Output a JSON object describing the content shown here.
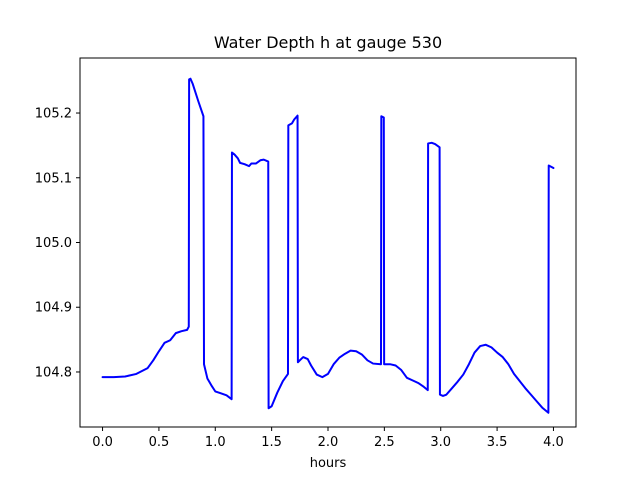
{
  "chart_data": {
    "type": "line",
    "title": "Water Depth h at gauge 530",
    "xlabel": "hours",
    "ylabel": "",
    "xlim": [
      -0.2,
      4.2
    ],
    "ylim": [
      104.715,
      105.285
    ],
    "x_ticks": [
      0.0,
      0.5,
      1.0,
      1.5,
      2.0,
      2.5,
      3.0,
      3.5,
      4.0
    ],
    "x_tick_labels": [
      "0.0",
      "0.5",
      "1.0",
      "1.5",
      "2.0",
      "2.5",
      "3.0",
      "3.5",
      "4.0"
    ],
    "y_ticks": [
      104.8,
      104.9,
      105.0,
      105.1,
      105.2
    ],
    "y_tick_labels": [
      "104.8",
      "104.9",
      "105.0",
      "105.1",
      "105.2"
    ],
    "grid": false,
    "legend": "none",
    "series": [
      {
        "color": "#0000ff",
        "points": [
          [
            0.0,
            104.792
          ],
          [
            0.1,
            104.792
          ],
          [
            0.2,
            104.793
          ],
          [
            0.3,
            104.797
          ],
          [
            0.4,
            104.806
          ],
          [
            0.45,
            104.818
          ],
          [
            0.5,
            104.832
          ],
          [
            0.55,
            104.845
          ],
          [
            0.6,
            104.849
          ],
          [
            0.65,
            104.86
          ],
          [
            0.7,
            104.863
          ],
          [
            0.75,
            104.865
          ],
          [
            0.765,
            104.87
          ],
          [
            0.768,
            105.252
          ],
          [
            0.78,
            105.253
          ],
          [
            0.8,
            105.245
          ],
          [
            0.85,
            105.218
          ],
          [
            0.895,
            105.195
          ],
          [
            0.9,
            104.812
          ],
          [
            0.93,
            104.79
          ],
          [
            0.97,
            104.778
          ],
          [
            1.0,
            104.77
          ],
          [
            1.05,
            104.767
          ],
          [
            1.1,
            104.764
          ],
          [
            1.145,
            104.758
          ],
          [
            1.148,
            105.139
          ],
          [
            1.17,
            105.136
          ],
          [
            1.2,
            105.13
          ],
          [
            1.22,
            105.123
          ],
          [
            1.26,
            105.121
          ],
          [
            1.3,
            105.118
          ],
          [
            1.32,
            105.122
          ],
          [
            1.36,
            105.122
          ],
          [
            1.4,
            105.127
          ],
          [
            1.43,
            105.128
          ],
          [
            1.47,
            105.125
          ],
          [
            1.473,
            104.744
          ],
          [
            1.5,
            104.747
          ],
          [
            1.55,
            104.768
          ],
          [
            1.6,
            104.786
          ],
          [
            1.645,
            104.797
          ],
          [
            1.648,
            105.181
          ],
          [
            1.68,
            105.184
          ],
          [
            1.7,
            105.19
          ],
          [
            1.73,
            105.196
          ],
          [
            1.733,
            104.815
          ],
          [
            1.75,
            104.818
          ],
          [
            1.78,
            104.823
          ],
          [
            1.82,
            104.82
          ],
          [
            1.85,
            104.81
          ],
          [
            1.9,
            104.796
          ],
          [
            1.95,
            104.792
          ],
          [
            2.0,
            104.797
          ],
          [
            2.05,
            104.812
          ],
          [
            2.1,
            104.822
          ],
          [
            2.15,
            104.828
          ],
          [
            2.2,
            104.833
          ],
          [
            2.25,
            104.832
          ],
          [
            2.3,
            104.827
          ],
          [
            2.35,
            104.818
          ],
          [
            2.4,
            104.813
          ],
          [
            2.47,
            104.812
          ],
          [
            2.473,
            105.195
          ],
          [
            2.495,
            105.193
          ],
          [
            2.498,
            104.812
          ],
          [
            2.55,
            104.812
          ],
          [
            2.6,
            104.81
          ],
          [
            2.65,
            104.803
          ],
          [
            2.7,
            104.791
          ],
          [
            2.75,
            104.787
          ],
          [
            2.8,
            104.783
          ],
          [
            2.85,
            104.777
          ],
          [
            2.885,
            104.772
          ],
          [
            2.888,
            105.153
          ],
          [
            2.92,
            105.154
          ],
          [
            2.95,
            105.152
          ],
          [
            2.99,
            105.147
          ],
          [
            2.993,
            104.765
          ],
          [
            3.02,
            104.763
          ],
          [
            3.05,
            104.765
          ],
          [
            3.1,
            104.775
          ],
          [
            3.15,
            104.785
          ],
          [
            3.2,
            104.796
          ],
          [
            3.25,
            104.812
          ],
          [
            3.3,
            104.83
          ],
          [
            3.35,
            104.84
          ],
          [
            3.4,
            104.842
          ],
          [
            3.45,
            104.838
          ],
          [
            3.5,
            104.83
          ],
          [
            3.55,
            104.823
          ],
          [
            3.6,
            104.812
          ],
          [
            3.65,
            104.797
          ],
          [
            3.7,
            104.786
          ],
          [
            3.75,
            104.775
          ],
          [
            3.8,
            104.765
          ],
          [
            3.85,
            104.755
          ],
          [
            3.9,
            104.745
          ],
          [
            3.955,
            104.737
          ],
          [
            3.958,
            105.119
          ],
          [
            4.0,
            105.115
          ]
        ]
      }
    ]
  }
}
